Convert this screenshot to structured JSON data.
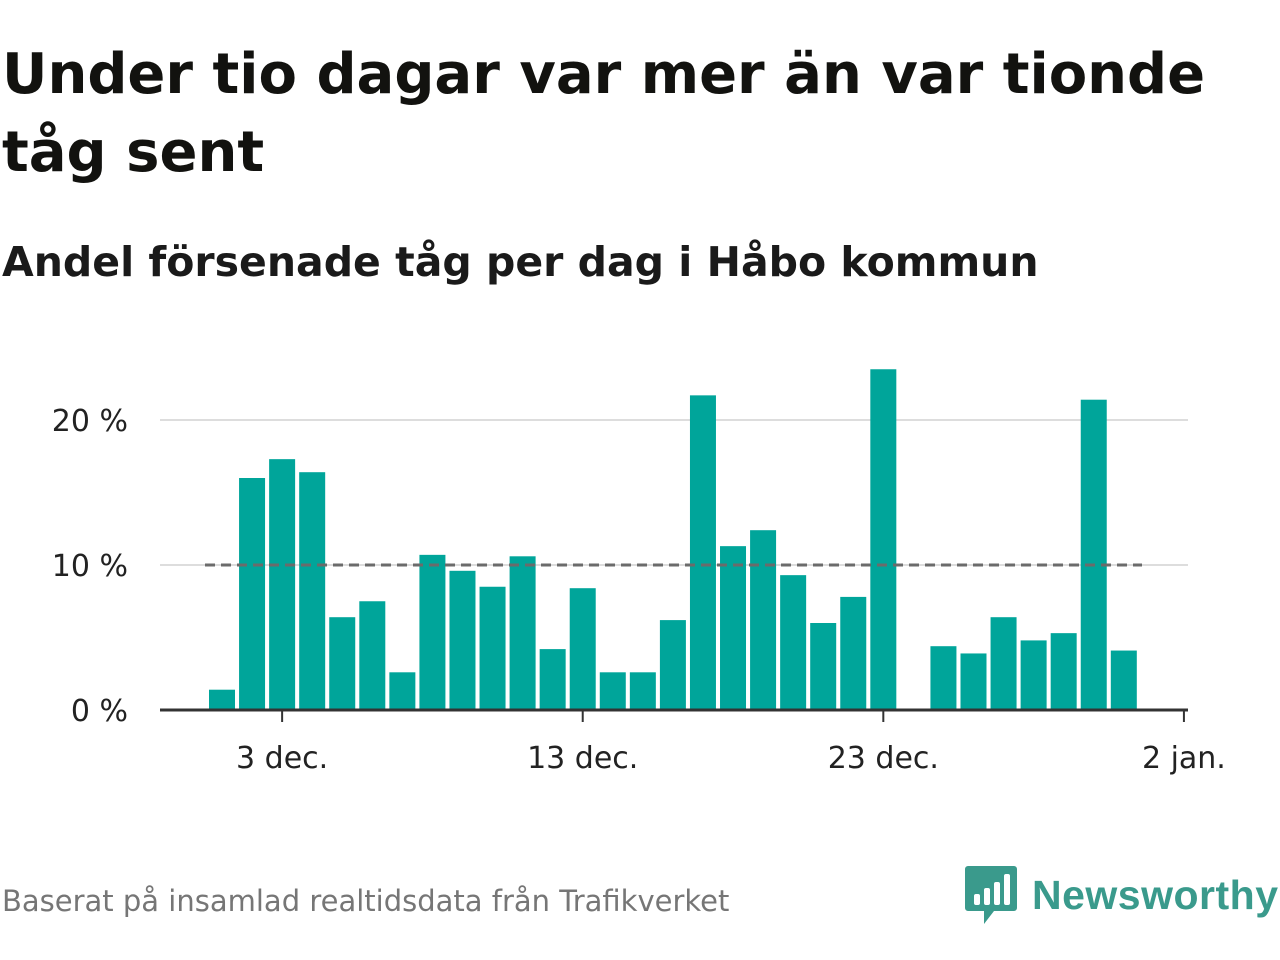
{
  "title": "Under tio dagar var mer än var tionde tåg sent",
  "subtitle": "Andel försenade tåg per dag i Håbo kommun",
  "source": "Baserat på insamlad realtidsdata från Trafikverket",
  "brand": {
    "name": "Newsworthy",
    "icon": "newsworthy-logo-icon"
  },
  "colors": {
    "bar": "#00a59a",
    "reference_line": "#6b6b6b",
    "grid": "#dddddd",
    "axis": "#333333"
  },
  "chart_data": {
    "type": "bar",
    "x": [
      "1 dec.",
      "2 dec.",
      "3 dec.",
      "4 dec.",
      "5 dec.",
      "6 dec.",
      "7 dec.",
      "8 dec.",
      "9 dec.",
      "10 dec.",
      "11 dec.",
      "12 dec.",
      "13 dec.",
      "14 dec.",
      "15 dec.",
      "16 dec.",
      "17 dec.",
      "18 dec.",
      "19 dec.",
      "20 dec.",
      "21 dec.",
      "22 dec.",
      "23 dec.",
      "24 dec.",
      "25 dec.",
      "26 dec.",
      "27 dec.",
      "28 dec.",
      "29 dec.",
      "30 dec.",
      "31 dec."
    ],
    "values": [
      1.4,
      16.0,
      17.3,
      16.4,
      6.4,
      7.5,
      2.6,
      10.7,
      9.6,
      8.5,
      10.6,
      4.2,
      8.4,
      2.6,
      2.6,
      6.2,
      21.7,
      11.3,
      12.4,
      9.3,
      6.0,
      7.8,
      23.5,
      0,
      4.4,
      3.9,
      6.4,
      4.8,
      5.3,
      21.4,
      4.1
    ],
    "reference_line": 10,
    "xlabel": "",
    "ylabel": "",
    "ylim": [
      0,
      25
    ],
    "yticks": [
      0,
      10,
      20
    ],
    "ytick_labels": [
      "0 %",
      "10 %",
      "20 %"
    ],
    "xticks": [
      {
        "label": "3 dec.",
        "index": 2
      },
      {
        "label": "13 dec.",
        "index": 12
      },
      {
        "label": "23 dec.",
        "index": 22
      },
      {
        "label": "2 jan.",
        "index": 32
      }
    ],
    "grid": true,
    "legend": "none"
  }
}
